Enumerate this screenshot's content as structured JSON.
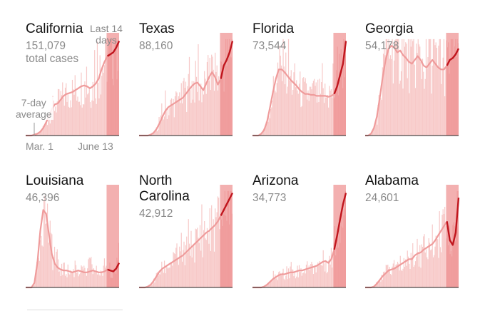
{
  "colors": {
    "bar": "#f7c9c8",
    "bar_recent": "#f09c9c",
    "recent_band": "#f3b0b0",
    "avg_line": "#ef9b9b",
    "avg_line_recent": "#c0151d",
    "baseline": "#222222",
    "muted_text": "#8a8a8a"
  },
  "annotations": {
    "last_14_days": "Last 14\ndays",
    "seven_day_avg": "7-day\naverage",
    "date_start": "Mar. 1",
    "date_end": "June 13",
    "total_cases": "total cases"
  },
  "chart_data": [
    {
      "type": "line",
      "state": "California",
      "title": "California",
      "total": "151,079",
      "xlabel": "",
      "ylabel": "",
      "x_range": [
        "Mar. 1",
        "June 13"
      ],
      "avg": [
        0,
        0,
        0,
        0.01,
        0.02,
        0.04,
        0.08,
        0.14,
        0.21,
        0.28,
        0.33,
        0.34,
        0.38,
        0.42,
        0.44,
        0.45,
        0.46,
        0.48,
        0.5,
        0.52,
        0.53,
        0.52,
        0.5,
        0.52,
        0.55,
        0.6,
        0.7,
        0.78,
        0.84,
        0.86,
        0.88,
        0.93,
        1.0
      ]
    },
    {
      "type": "line",
      "state": "Texas",
      "title": "Texas",
      "total": "88,160",
      "xlabel": "",
      "ylabel": "",
      "x_range": [
        "Mar. 1",
        "June 13"
      ],
      "avg": [
        0,
        0,
        0,
        0,
        0.01,
        0.03,
        0.07,
        0.13,
        0.2,
        0.26,
        0.3,
        0.32,
        0.34,
        0.36,
        0.38,
        0.4,
        0.44,
        0.48,
        0.52,
        0.55,
        0.56,
        0.52,
        0.48,
        0.55,
        0.62,
        0.67,
        0.62,
        0.54,
        0.6,
        0.74,
        0.8,
        0.88,
        1.0
      ]
    },
    {
      "type": "line",
      "state": "Florida",
      "title": "Florida",
      "total": "73,544",
      "xlabel": "",
      "ylabel": "",
      "x_range": [
        "Mar. 1",
        "June 13"
      ],
      "avg": [
        0,
        0,
        0,
        0.02,
        0.06,
        0.15,
        0.3,
        0.46,
        0.6,
        0.7,
        0.7,
        0.67,
        0.63,
        0.59,
        0.56,
        0.53,
        0.49,
        0.46,
        0.44,
        0.44,
        0.43,
        0.43,
        0.42,
        0.42,
        0.42,
        0.42,
        0.41,
        0.42,
        0.44,
        0.52,
        0.64,
        0.76,
        1.0
      ]
    },
    {
      "type": "line",
      "state": "Georgia",
      "title": "Georgia",
      "total": "54,178",
      "xlabel": "",
      "ylabel": "",
      "x_range": [
        "Mar. 1",
        "June 13"
      ],
      "avg": [
        0,
        0,
        0.02,
        0.08,
        0.2,
        0.4,
        0.62,
        0.8,
        0.92,
        0.95,
        0.93,
        0.88,
        0.9,
        0.85,
        0.82,
        0.78,
        0.76,
        0.8,
        0.84,
        0.8,
        0.74,
        0.72,
        0.76,
        0.8,
        0.76,
        0.72,
        0.7,
        0.7,
        0.74,
        0.8,
        0.82,
        0.86,
        0.92
      ]
    },
    {
      "type": "line",
      "state": "Louisiana",
      "title": "Louisiana",
      "total": "46,396",
      "xlabel": "",
      "ylabel": "",
      "x_range": [
        "Mar. 1",
        "June 13"
      ],
      "avg": [
        0,
        0,
        0,
        0.05,
        0.26,
        0.6,
        0.82,
        0.78,
        0.55,
        0.35,
        0.25,
        0.21,
        0.19,
        0.18,
        0.18,
        0.17,
        0.16,
        0.17,
        0.18,
        0.17,
        0.16,
        0.16,
        0.17,
        0.18,
        0.17,
        0.16,
        0.16,
        0.17,
        0.19,
        0.18,
        0.17,
        0.2,
        0.26
      ]
    },
    {
      "type": "line",
      "state": "North Carolina",
      "title": "North\nCarolina",
      "total": "42,912",
      "xlabel": "",
      "ylabel": "",
      "x_range": [
        "Mar. 1",
        "June 13"
      ],
      "avg": [
        0,
        0,
        0,
        0.01,
        0.03,
        0.07,
        0.12,
        0.17,
        0.2,
        0.22,
        0.24,
        0.26,
        0.28,
        0.3,
        0.32,
        0.34,
        0.37,
        0.4,
        0.43,
        0.46,
        0.49,
        0.52,
        0.55,
        0.58,
        0.6,
        0.63,
        0.66,
        0.7,
        0.76,
        0.82,
        0.88,
        0.94,
        1.0
      ]
    },
    {
      "type": "line",
      "state": "Arizona",
      "title": "Arizona",
      "total": "34,773",
      "xlabel": "",
      "ylabel": "",
      "x_range": [
        "Mar. 1",
        "June 13"
      ],
      "avg": [
        0,
        0,
        0,
        0,
        0.01,
        0.03,
        0.06,
        0.09,
        0.11,
        0.13,
        0.14,
        0.14,
        0.15,
        0.16,
        0.16,
        0.17,
        0.18,
        0.18,
        0.19,
        0.2,
        0.21,
        0.22,
        0.23,
        0.25,
        0.27,
        0.28,
        0.26,
        0.3,
        0.4,
        0.55,
        0.72,
        0.88,
        1.0
      ]
    },
    {
      "type": "line",
      "state": "Alabama",
      "title": "Alabama",
      "total": "24,601",
      "xlabel": "",
      "ylabel": "",
      "x_range": [
        "Mar. 1",
        "June 13"
      ],
      "avg": [
        0,
        0,
        0,
        0.01,
        0.04,
        0.08,
        0.12,
        0.15,
        0.18,
        0.19,
        0.2,
        0.22,
        0.24,
        0.26,
        0.28,
        0.3,
        0.3,
        0.34,
        0.36,
        0.37,
        0.4,
        0.42,
        0.44,
        0.46,
        0.5,
        0.55,
        0.6,
        0.65,
        0.7,
        0.5,
        0.45,
        0.58,
        0.95
      ]
    }
  ]
}
